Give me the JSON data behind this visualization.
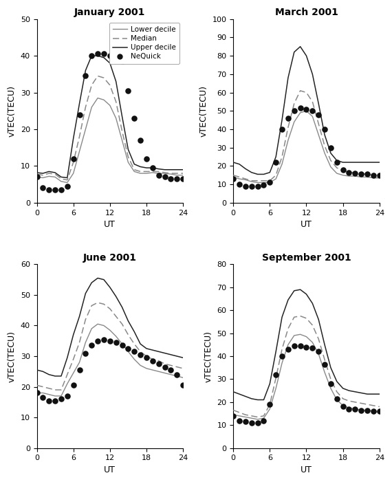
{
  "panels": [
    {
      "title": "January 2001",
      "ylim": [
        0,
        50
      ],
      "yticks": [
        0,
        10,
        20,
        30,
        40,
        50
      ],
      "lower_decile": [
        7.0,
        6.8,
        7.2,
        7.0,
        5.8,
        5.5,
        8.0,
        14.0,
        20.0,
        26.0,
        28.5,
        28.0,
        26.5,
        23.0,
        17.0,
        11.0,
        8.5,
        8.0,
        8.0,
        8.2,
        8.0,
        8.0,
        7.8,
        7.5,
        7.5
      ],
      "median": [
        7.8,
        7.5,
        8.0,
        7.8,
        6.5,
        6.2,
        11.0,
        18.0,
        26.0,
        32.0,
        34.5,
        34.0,
        32.0,
        27.5,
        19.5,
        12.5,
        9.0,
        8.5,
        8.5,
        8.5,
        8.5,
        8.2,
        8.0,
        8.0,
        8.0
      ],
      "upper_decile": [
        8.2,
        8.0,
        8.5,
        8.2,
        7.0,
        6.8,
        17.5,
        27.0,
        36.0,
        40.0,
        40.0,
        39.5,
        38.0,
        33.0,
        23.5,
        14.5,
        10.5,
        9.8,
        9.5,
        9.5,
        9.2,
        9.0,
        9.0,
        9.0,
        9.0
      ],
      "nequick": [
        7.0,
        4.0,
        3.5,
        3.5,
        3.5,
        4.5,
        12.0,
        24.0,
        34.5,
        40.0,
        40.5,
        40.5,
        40.0,
        39.5,
        38.5,
        30.5,
        23.0,
        17.0,
        12.0,
        9.5,
        7.5,
        7.0,
        6.5,
        6.5,
        6.5
      ],
      "show_legend": true
    },
    {
      "title": "March 2001",
      "ylim": [
        0,
        100
      ],
      "yticks": [
        0,
        10,
        20,
        30,
        40,
        50,
        60,
        70,
        80,
        90,
        100
      ],
      "lower_decile": [
        14.0,
        13.0,
        12.5,
        11.5,
        11.0,
        11.0,
        11.0,
        13.0,
        21.0,
        34.0,
        44.0,
        49.0,
        50.0,
        47.0,
        37.0,
        27.0,
        19.5,
        16.0,
        15.0,
        14.5,
        14.5,
        14.0,
        14.0,
        13.5,
        13.5
      ],
      "median": [
        15.0,
        14.0,
        13.0,
        12.0,
        12.0,
        12.0,
        12.0,
        15.0,
        25.0,
        41.0,
        54.0,
        61.0,
        60.0,
        55.0,
        43.0,
        31.0,
        23.0,
        19.0,
        17.5,
        16.5,
        16.5,
        16.0,
        15.5,
        15.0,
        15.0
      ],
      "upper_decile": [
        22.0,
        21.0,
        18.5,
        16.5,
        15.5,
        15.5,
        16.5,
        25.0,
        45.0,
        68.0,
        82.0,
        85.0,
        80.0,
        70.0,
        54.0,
        37.0,
        27.0,
        23.0,
        22.0,
        22.0,
        22.0,
        22.0,
        22.0,
        22.0,
        22.0
      ],
      "nequick": [
        13.0,
        10.0,
        9.0,
        9.0,
        9.0,
        9.5,
        11.0,
        22.0,
        40.0,
        46.0,
        50.0,
        51.5,
        51.0,
        50.0,
        48.0,
        40.0,
        30.0,
        22.0,
        18.0,
        16.5,
        16.0,
        15.5,
        15.5,
        15.0,
        15.0
      ],
      "show_legend": false
    },
    {
      "title": "June 2001",
      "ylim": [
        0,
        60
      ],
      "yticks": [
        0,
        10,
        20,
        30,
        40,
        50,
        60
      ],
      "lower_decile": [
        18.0,
        18.0,
        17.5,
        17.0,
        17.0,
        21.0,
        24.5,
        28.0,
        34.5,
        39.0,
        40.5,
        40.0,
        38.5,
        36.5,
        34.0,
        31.5,
        29.0,
        27.0,
        26.0,
        25.5,
        25.0,
        24.5,
        24.0,
        23.5,
        23.0
      ],
      "median": [
        20.5,
        20.0,
        19.5,
        19.0,
        19.0,
        24.0,
        29.0,
        34.5,
        42.0,
        46.5,
        47.5,
        47.0,
        45.5,
        43.0,
        40.5,
        37.0,
        34.0,
        31.5,
        30.0,
        29.0,
        28.5,
        27.5,
        27.0,
        26.5,
        26.0
      ],
      "upper_decile": [
        25.5,
        25.0,
        24.0,
        23.5,
        23.5,
        29.5,
        37.0,
        43.0,
        50.5,
        54.0,
        55.5,
        55.0,
        52.5,
        49.5,
        46.0,
        41.5,
        38.0,
        34.0,
        32.5,
        32.0,
        31.5,
        31.0,
        30.5,
        30.0,
        29.5
      ],
      "nequick": [
        18.0,
        16.5,
        15.5,
        15.5,
        16.0,
        17.0,
        20.5,
        25.5,
        31.0,
        33.5,
        35.0,
        35.5,
        35.0,
        34.5,
        33.5,
        32.5,
        31.5,
        30.5,
        29.5,
        28.5,
        27.5,
        26.5,
        25.5,
        24.0,
        20.5
      ],
      "show_legend": false
    },
    {
      "title": "September 2001",
      "ylim": [
        0,
        80
      ],
      "yticks": [
        0,
        10,
        20,
        30,
        40,
        50,
        60,
        70,
        80
      ],
      "lower_decile": [
        14.5,
        14.0,
        13.5,
        13.0,
        12.5,
        13.0,
        17.0,
        26.0,
        37.0,
        45.0,
        49.0,
        49.5,
        48.5,
        46.0,
        41.0,
        33.0,
        26.0,
        21.0,
        18.5,
        17.5,
        17.0,
        16.5,
        16.5,
        16.0,
        15.5
      ],
      "median": [
        16.5,
        15.5,
        14.5,
        14.0,
        13.5,
        14.0,
        19.0,
        30.5,
        43.0,
        52.0,
        57.0,
        57.5,
        56.5,
        53.5,
        47.5,
        38.5,
        30.0,
        24.5,
        21.5,
        20.5,
        20.0,
        19.5,
        19.0,
        18.5,
        18.0
      ],
      "upper_decile": [
        24.5,
        23.5,
        22.5,
        21.5,
        21.0,
        21.0,
        28.0,
        42.0,
        57.0,
        64.5,
        68.5,
        69.0,
        67.0,
        63.0,
        56.0,
        45.0,
        35.0,
        29.0,
        26.0,
        25.0,
        24.5,
        24.0,
        23.5,
        23.5,
        23.5
      ],
      "nequick": [
        14.0,
        12.0,
        11.5,
        11.0,
        11.0,
        12.0,
        19.0,
        32.0,
        40.0,
        43.0,
        44.5,
        44.5,
        44.0,
        43.5,
        42.0,
        36.5,
        28.0,
        21.5,
        18.0,
        17.0,
        17.0,
        16.5,
        16.5,
        16.0,
        16.0
      ],
      "show_legend": false
    }
  ],
  "xt": [
    0,
    6,
    12,
    18,
    24
  ],
  "xlabel": "UT",
  "ylabel": "vTEC(TECU)",
  "lower_color": "#888888",
  "median_color": "#888888",
  "upper_color": "#222222",
  "nequick_color": "#111111",
  "background_color": "#ffffff"
}
